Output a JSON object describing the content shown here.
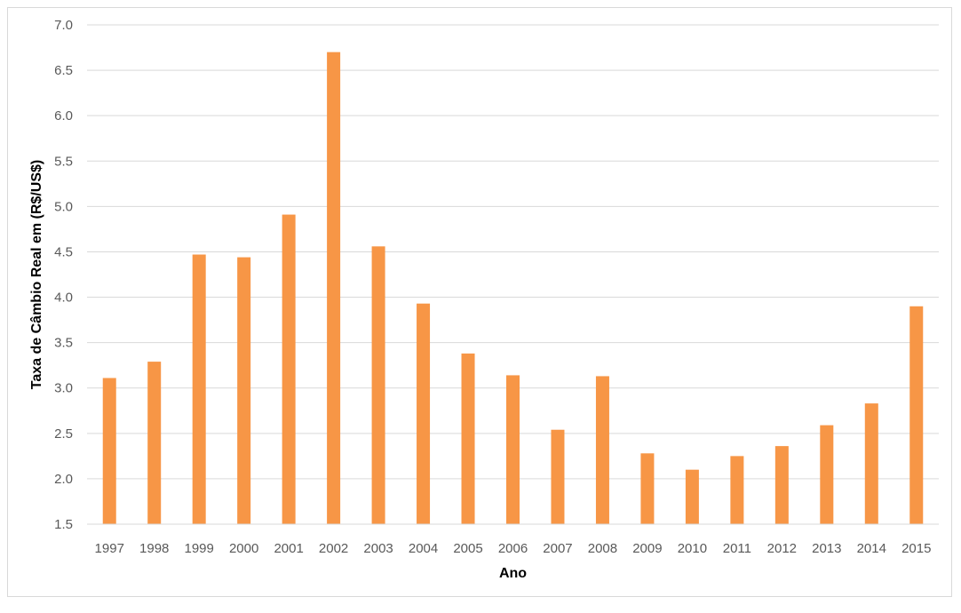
{
  "chart_data": {
    "type": "bar",
    "xlabel": "Ano",
    "ylabel": "Taxa de Câmbio Real em (R$/US$)",
    "ylim": [
      1.5,
      7.0
    ],
    "ytick_step": 0.5,
    "yticks": [
      "1.5",
      "2.0",
      "2.5",
      "3.0",
      "3.5",
      "4.0",
      "4.5",
      "5.0",
      "5.5",
      "6.0",
      "6.5",
      "7.0"
    ],
    "categories": [
      "1997",
      "1998",
      "1999",
      "2000",
      "2001",
      "2002",
      "2003",
      "2004",
      "2005",
      "2006",
      "2007",
      "2008",
      "2009",
      "2010",
      "2011",
      "2012",
      "2013",
      "2014",
      "2015"
    ],
    "values": [
      3.11,
      3.29,
      4.47,
      4.44,
      4.91,
      6.7,
      4.56,
      3.93,
      3.38,
      3.14,
      2.54,
      3.13,
      2.28,
      2.1,
      2.25,
      2.36,
      2.59,
      2.83,
      3.9
    ],
    "bar_color": "#f79646",
    "grid": true,
    "legend": "none"
  }
}
